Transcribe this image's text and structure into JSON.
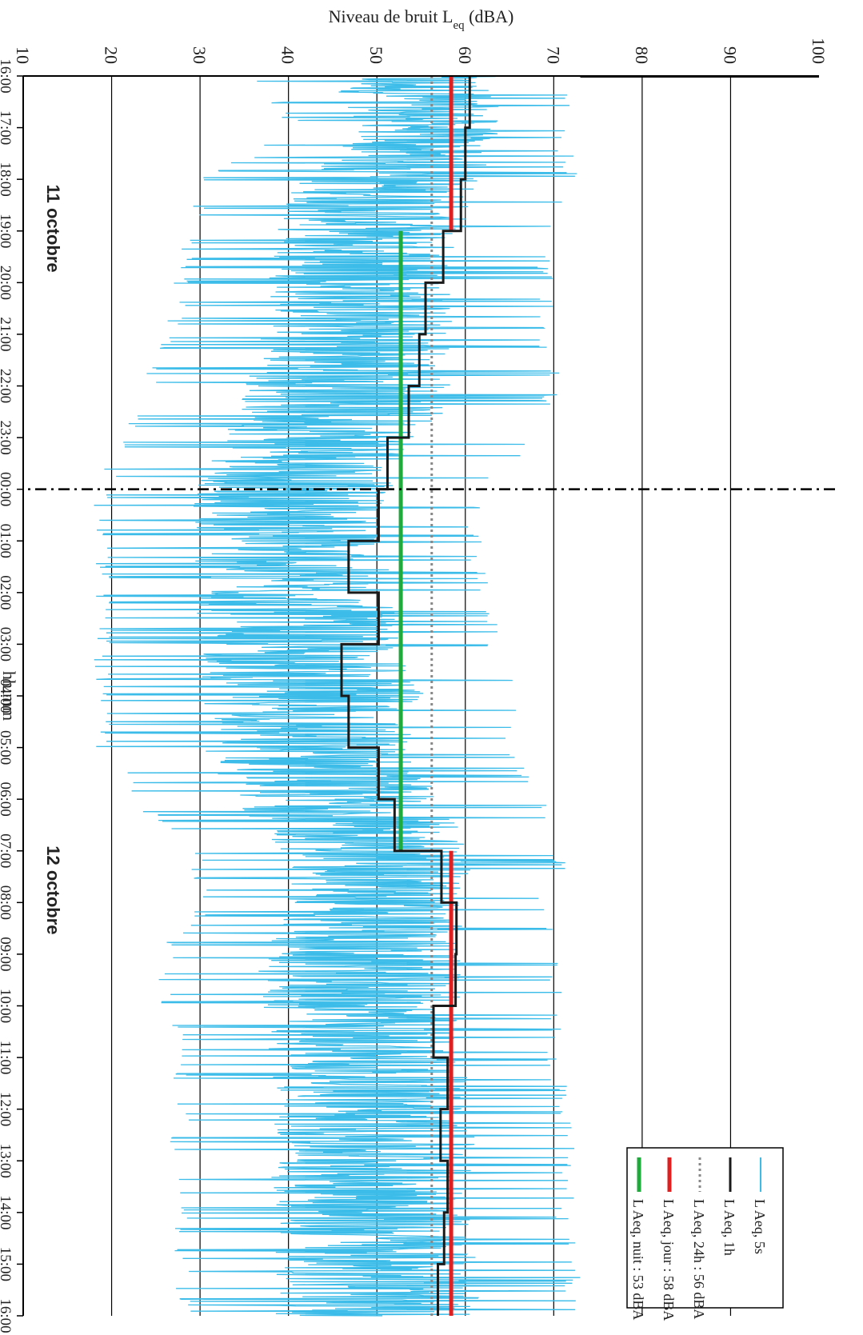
{
  "chart_data": {
    "type": "line",
    "orientation": "rotated 90 degrees clockwise",
    "ylabel": "Niveau de bruit L",
    "ylabel_sub": "eq",
    "ylabel_unit": " (dBA)",
    "xlabel": "hh:mm",
    "ylim": [
      10,
      100
    ],
    "y_ticks": [
      "10",
      "20",
      "30",
      "40",
      "50",
      "60",
      "70",
      "80",
      "90",
      "100"
    ],
    "x_ticks": [
      "16:00",
      "17:00",
      "18:00",
      "19:00",
      "20:00",
      "21:00",
      "22:00",
      "23:00",
      "00:00",
      "01:00",
      "02:00",
      "03:00",
      "04:00",
      "05:00",
      "06:00",
      "07:00",
      "08:00",
      "09:00",
      "10:00",
      "11:00",
      "12:00",
      "13:00",
      "14:00",
      "15:00",
      "16:00"
    ],
    "grid": "horizontal",
    "legend_position": "top-right",
    "annotations": {
      "day1": "11 octobre",
      "day2": "12 octobre"
    },
    "midnight_marker_hours_from_start": 8,
    "series": [
      {
        "name": "L Aeq, 5s",
        "color": "#3cbde9",
        "interval_seconds": 5,
        "hourly_envelope": [
          {
            "hour": "16:00",
            "min": 35,
            "max": 73
          },
          {
            "hour": "17:00",
            "min": 40,
            "max": 72
          },
          {
            "hour": "18:00",
            "min": 30,
            "max": 73
          },
          {
            "hour": "19:00",
            "min": 28,
            "max": 70
          },
          {
            "hour": "20:00",
            "min": 27,
            "max": 70
          },
          {
            "hour": "21:00",
            "min": 26,
            "max": 70
          },
          {
            "hour": "22:00",
            "min": 23,
            "max": 71
          },
          {
            "hour": "23:00",
            "min": 21,
            "max": 68
          },
          {
            "hour": "00:00",
            "min": 18,
            "max": 63
          },
          {
            "hour": "01:00",
            "min": 18,
            "max": 62
          },
          {
            "hour": "02:00",
            "min": 18,
            "max": 63
          },
          {
            "hour": "03:00",
            "min": 18,
            "max": 64
          },
          {
            "hour": "04:00",
            "min": 18,
            "max": 68
          },
          {
            "hour": "05:00",
            "min": 18,
            "max": 66
          },
          {
            "hour": "06:00",
            "min": 22,
            "max": 69
          },
          {
            "hour": "07:00",
            "min": 28,
            "max": 72
          },
          {
            "hour": "08:00",
            "min": 30,
            "max": 70
          },
          {
            "hour": "09:00",
            "min": 25,
            "max": 71
          },
          {
            "hour": "10:00",
            "min": 25,
            "max": 71
          },
          {
            "hour": "11:00",
            "min": 27,
            "max": 71
          },
          {
            "hour": "12:00",
            "min": 27,
            "max": 72
          },
          {
            "hour": "13:00",
            "min": 26,
            "max": 73
          },
          {
            "hour": "14:00",
            "min": 27,
            "max": 72
          },
          {
            "hour": "15:00",
            "min": 27,
            "max": 73
          }
        ]
      },
      {
        "name": "L Aeq, 1h",
        "color": "#1a1a1a",
        "hourly": [
          60.5,
          60,
          59.5,
          57.5,
          55.5,
          54.8,
          53.6,
          51.2,
          50.2,
          46.8,
          50.2,
          46.0,
          46.8,
          50.2,
          52.0,
          57.3,
          59.0,
          58.9,
          56.4,
          58.0,
          57.2,
          58.0,
          57.6,
          56.9
        ]
      },
      {
        "name": "L Aeq, 24h : 56 dBA",
        "color": "#888888",
        "value": 56.2,
        "style": "dotted"
      },
      {
        "name": "L Aeq, jour : 58 dBA",
        "color": "#e02020",
        "value": 58.4,
        "periods": [
          [
            "16:00",
            "19:00"
          ],
          [
            "07:00",
            "16:00"
          ]
        ]
      },
      {
        "name": "L Aeq, nuit : 53 dBA",
        "color": "#1faa3c",
        "value": 52.7,
        "periods": [
          [
            "19:00",
            "07:00"
          ]
        ]
      }
    ]
  }
}
